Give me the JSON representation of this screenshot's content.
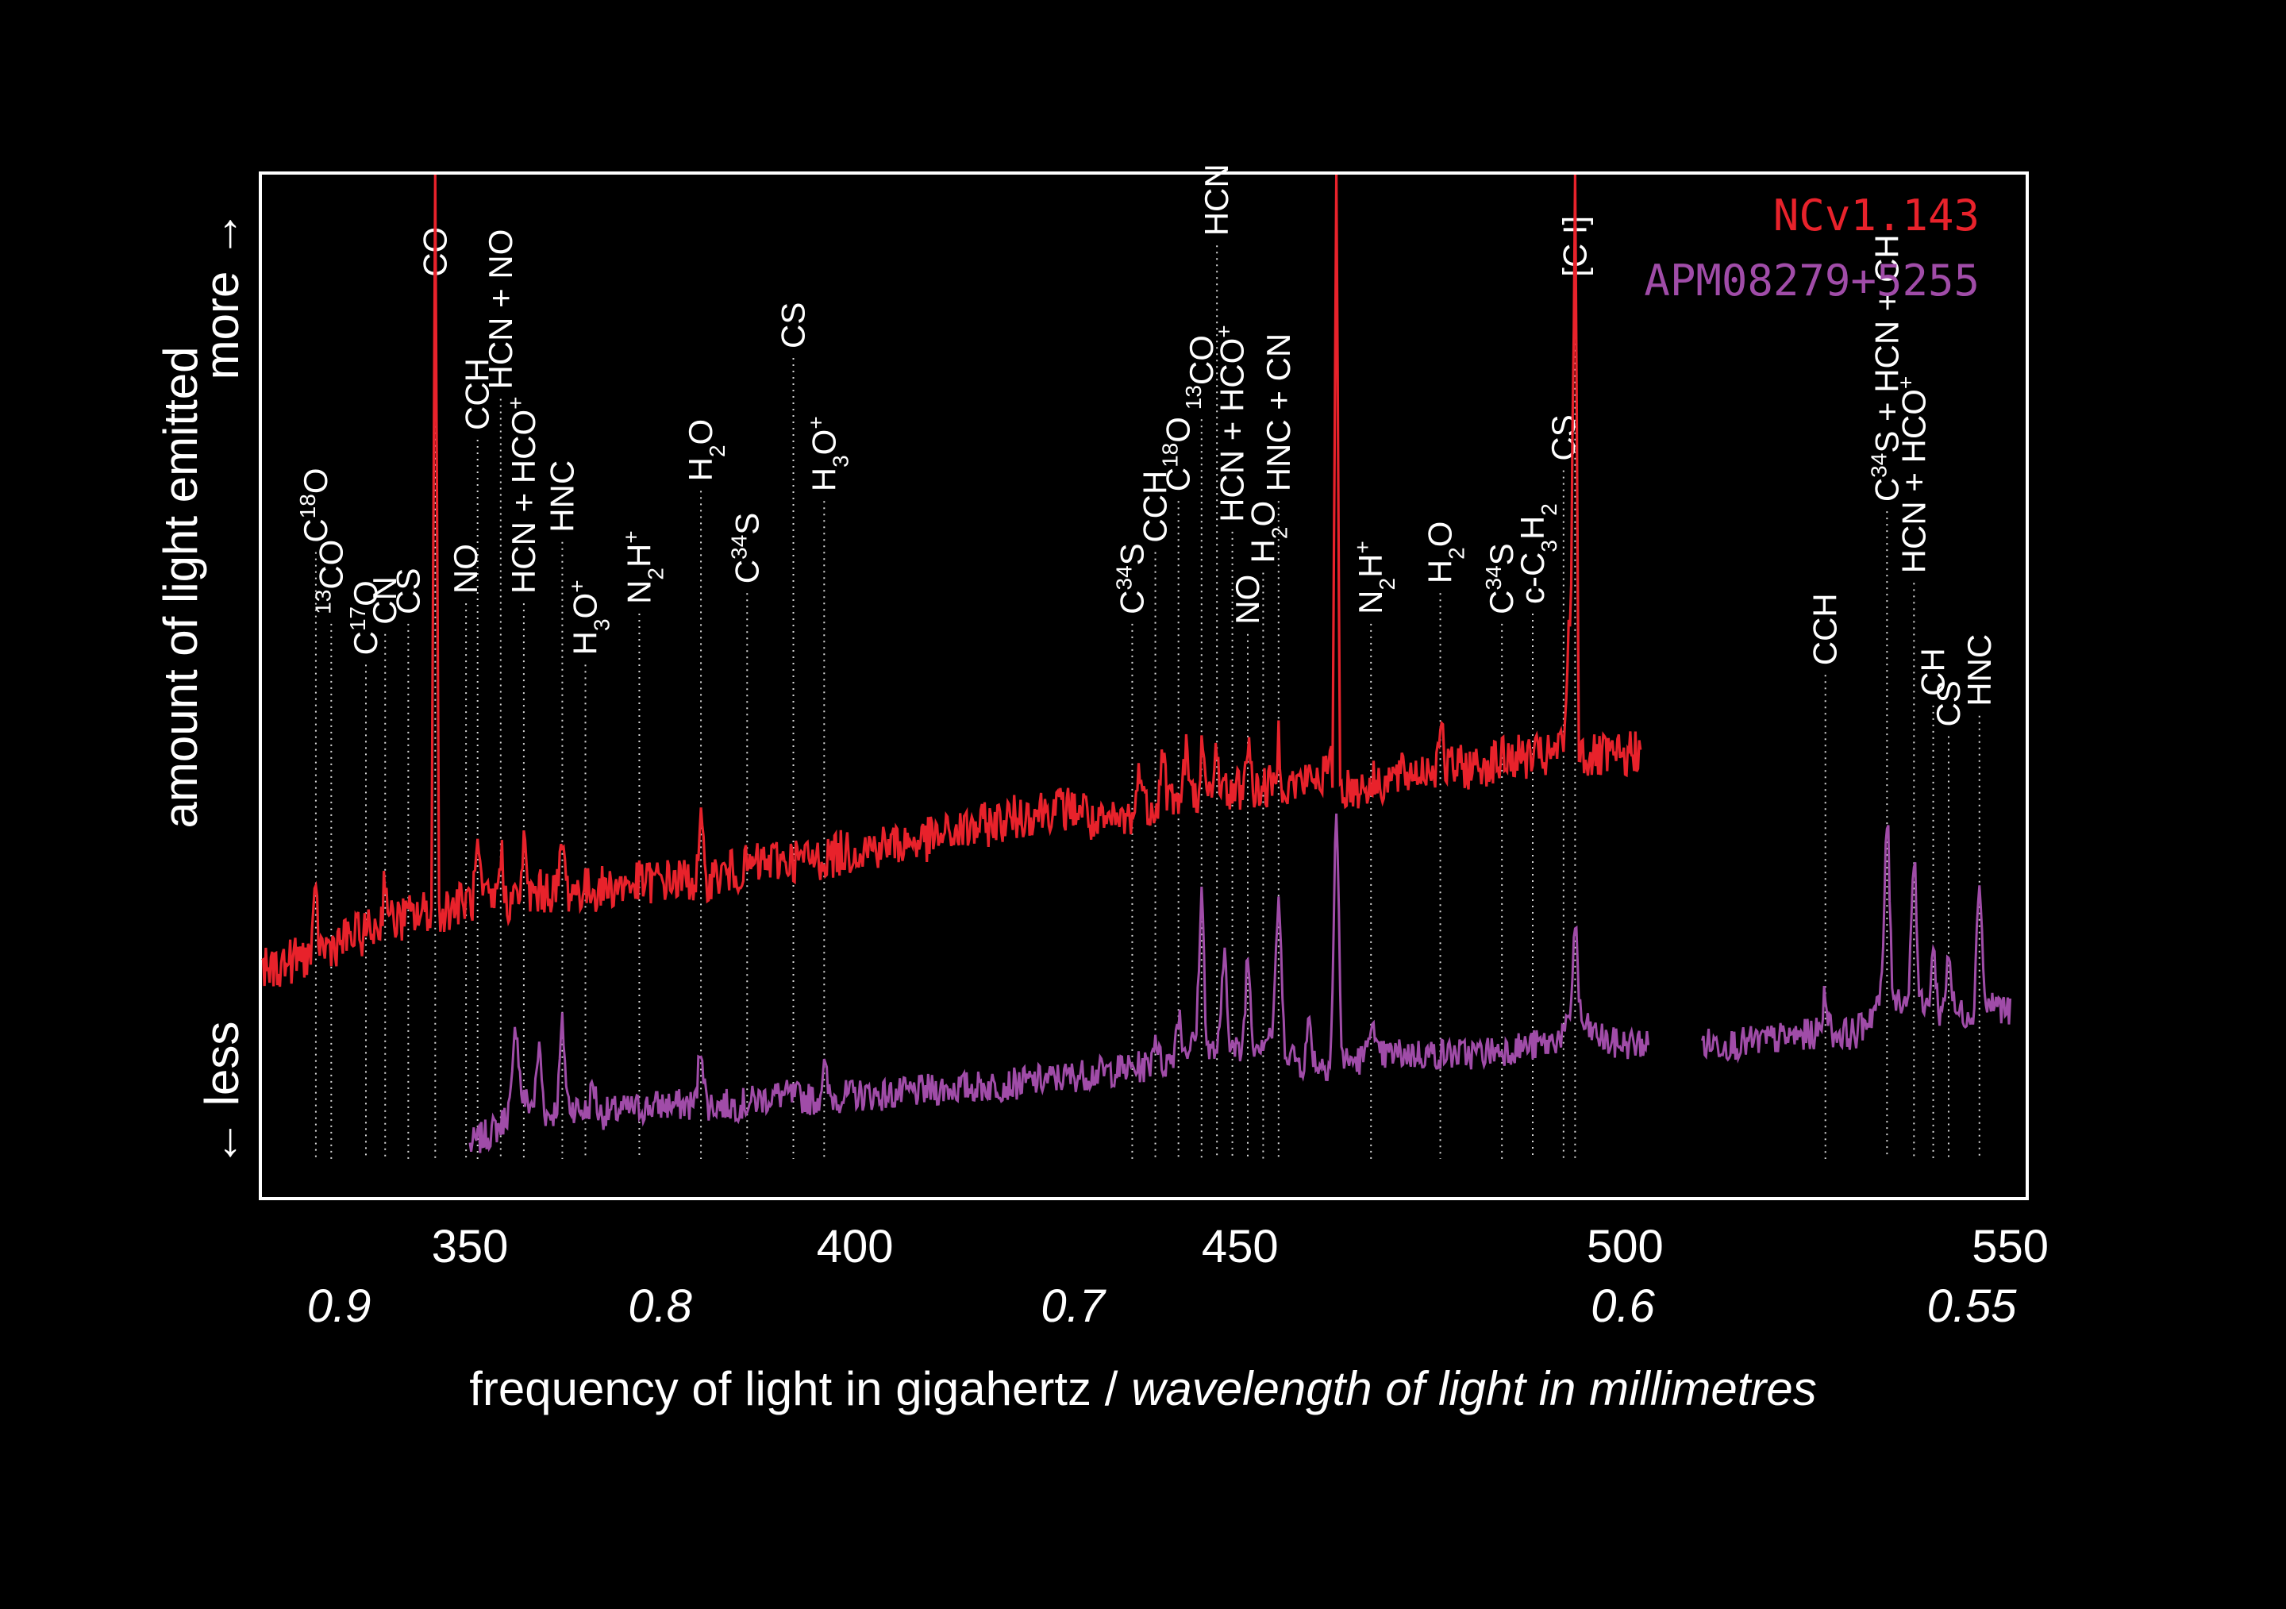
{
  "chart_data": {
    "type": "line",
    "title": "",
    "xlabel": "frequency of light in gigahertz / ",
    "xlabel_italic": "wavelength of light in millimetres",
    "ylabel": "amount of light emitted",
    "y_more": "more →",
    "y_less": "← less",
    "xlim": [
      323,
      552
    ],
    "ylim": [
      0,
      100
    ],
    "grid": false,
    "legend_placement": "top-right",
    "x_ticks": [
      {
        "value": 350,
        "label": "350"
      },
      {
        "value": 400,
        "label": "400"
      },
      {
        "value": 450,
        "label": "450"
      },
      {
        "value": 500,
        "label": "500"
      },
      {
        "value": 550,
        "label": "550"
      }
    ],
    "wavelength_ticks": [
      {
        "value": 333,
        "label": "0.9"
      },
      {
        "value": 374.7,
        "label": "0.8"
      },
      {
        "value": 428.3,
        "label": "0.7"
      },
      {
        "value": 499.7,
        "label": "0.6"
      },
      {
        "value": 545,
        "label": "0.55"
      }
    ],
    "series": [
      {
        "name": "NCv1.143",
        "color": "#e8222b",
        "x": [
          323,
          330,
          340,
          345,
          345.5,
          346,
          350,
          355,
          360,
          365,
          370,
          375,
          380,
          385,
          390,
          395,
          400,
          405,
          410,
          415,
          420,
          425,
          430,
          431,
          435,
          440,
          445,
          450,
          455,
          460,
          462,
          462.5,
          463,
          465,
          470,
          475,
          480,
          485,
          490,
          492,
          493,
          493.5,
          494,
          495,
          500,
          502
        ],
        "y": [
          22,
          24,
          27,
          28,
          100,
          28,
          29,
          29,
          30,
          30,
          30.5,
          31,
          31,
          32,
          33,
          33,
          34,
          34.5,
          35,
          36,
          37,
          38,
          38,
          36,
          37,
          39,
          39,
          40,
          40,
          41,
          42,
          100,
          40,
          40,
          41,
          42,
          42,
          43,
          43,
          44,
          60,
          100,
          44,
          43,
          43,
          44
        ]
      },
      {
        "name": "APM08279+5255",
        "color": "#a04ca8",
        "segments": [
          {
            "x": [
              350,
              354,
              356,
              360,
              363,
              366,
              370,
              375,
              380,
              385,
              390,
              395,
              400,
              405,
              410,
              420,
              430,
              440,
              444,
              446,
              448,
              450,
              454,
              458,
              462,
              466,
              470,
              475,
              480,
              485,
              490,
              494,
              498,
              503
            ],
            "y": [
              5,
              7,
              10,
              8,
              9,
              8,
              8.5,
              9,
              9,
              9,
              10,
              9.5,
              10,
              10,
              10.5,
              11,
              12,
              13,
              15,
              14,
              15,
              14,
              16,
              13,
              13,
              13.5,
              14,
              14,
              14,
              14.5,
              15,
              17,
              15,
              15
            ]
          },
          {
            "x": [
              510,
              515,
              520,
              525,
              530,
              534,
              537,
              540,
              545,
              548,
              550
            ],
            "y": [
              15,
              15,
              15.5,
              16,
              16,
              20,
              19,
              18,
              18,
              19,
              18
            ]
          }
        ],
        "peaks": [
          {
            "x": 356,
            "h": 7
          },
          {
            "x": 359,
            "h": 6
          },
          {
            "x": 362,
            "h": 8
          },
          {
            "x": 366,
            "h": 3
          },
          {
            "x": 380,
            "h": 6
          },
          {
            "x": 396,
            "h": 3
          },
          {
            "x": 439,
            "h": 3
          },
          {
            "x": 442,
            "h": 4
          },
          {
            "x": 445,
            "h": 15
          },
          {
            "x": 448,
            "h": 9
          },
          {
            "x": 451,
            "h": 9
          },
          {
            "x": 455,
            "h": 14
          },
          {
            "x": 459,
            "h": 4
          },
          {
            "x": 462.5,
            "h": 24
          },
          {
            "x": 467,
            "h": 4
          },
          {
            "x": 493.5,
            "h": 10
          },
          {
            "x": 526,
            "h": 4
          },
          {
            "x": 534,
            "h": 17
          },
          {
            "x": 537.5,
            "h": 15
          },
          {
            "x": 540,
            "h": 6
          },
          {
            "x": 542,
            "h": 6
          },
          {
            "x": 546,
            "h": 13
          }
        ]
      }
    ],
    "annotations": [
      {
        "x": 330,
        "top": 64,
        "text": "C",
        "sup": "18",
        "after": "O"
      },
      {
        "x": 332,
        "top": 57,
        "pre": "13",
        "text": "CO"
      },
      {
        "x": 336.5,
        "top": 53,
        "text": "C",
        "sup": "17",
        "after": "O"
      },
      {
        "x": 339,
        "top": 56,
        "text": "CN"
      },
      {
        "x": 342,
        "top": 57,
        "text": "CS"
      },
      {
        "x": 345.5,
        "top": 90,
        "text": "CO"
      },
      {
        "x": 349.5,
        "top": 59,
        "text": "NO"
      },
      {
        "x": 351,
        "top": 75,
        "text": "CCH"
      },
      {
        "x": 354,
        "top": 79,
        "text": "HCN + NO"
      },
      {
        "x": 357,
        "top": 59,
        "text": "HCN + HCO",
        "sup": "+"
      },
      {
        "x": 362,
        "top": 65,
        "text": "HNC"
      },
      {
        "x": 365,
        "top": 53,
        "text": "H",
        "sub": "3",
        "after": "O",
        "sup2": "+"
      },
      {
        "x": 372,
        "top": 58,
        "text": "N",
        "sub": "2",
        "after": "H",
        "sup2": "+"
      },
      {
        "x": 380,
        "top": 70,
        "text": "H",
        "sub": "2",
        "after": "O"
      },
      {
        "x": 386,
        "top": 60,
        "text": "C",
        "sup": "34",
        "after": "S"
      },
      {
        "x": 392,
        "top": 83,
        "text": "CS"
      },
      {
        "x": 396,
        "top": 69,
        "text": "H",
        "sub": "3",
        "after": "O",
        "sup2": "+"
      },
      {
        "x": 436,
        "top": 57,
        "text": "C",
        "sup": "34",
        "after": "S"
      },
      {
        "x": 439,
        "top": 64,
        "text": "CCH"
      },
      {
        "x": 442,
        "top": 69,
        "text": "C",
        "sup": "18",
        "after": "O"
      },
      {
        "x": 445,
        "top": 77,
        "pre": "13",
        "text": "CO"
      },
      {
        "x": 447,
        "top": 94,
        "text": "HCN"
      },
      {
        "x": 449,
        "top": 66,
        "text": "HCN + HCO",
        "sup": "+"
      },
      {
        "x": 451,
        "top": 56,
        "text": "NO"
      },
      {
        "x": 453,
        "top": 62,
        "text": "H",
        "sub": "2",
        "after": "O"
      },
      {
        "x": 455,
        "top": 69,
        "text": "HNC + CN"
      },
      {
        "x": 467,
        "top": 57,
        "text": "N",
        "sub": "2",
        "after": "H",
        "sup2": "+"
      },
      {
        "x": 476,
        "top": 60,
        "text": "H",
        "sub": "2",
        "after": "O"
      },
      {
        "x": 484,
        "top": 57,
        "text": "C",
        "sup": "34",
        "after": "S"
      },
      {
        "x": 488,
        "top": 58,
        "text": "c-C",
        "sub": "3",
        "after": "H",
        "sub2": "2"
      },
      {
        "x": 492,
        "top": 72,
        "text": "CS"
      },
      {
        "x": 493.5,
        "top": 90,
        "text": "[C I]"
      },
      {
        "x": 526,
        "top": 52,
        "text": "CCH"
      },
      {
        "x": 534,
        "top": 68,
        "text": "C",
        "sup": "34",
        "after": "S + HCN + CH"
      },
      {
        "x": 537.5,
        "top": 61,
        "text": "HCN + HCO",
        "sup": "+"
      },
      {
        "x": 540,
        "top": 49,
        "text": "CH"
      },
      {
        "x": 542,
        "top": 46,
        "text": "CS"
      },
      {
        "x": 546,
        "top": 48,
        "text": "HNC"
      }
    ]
  }
}
